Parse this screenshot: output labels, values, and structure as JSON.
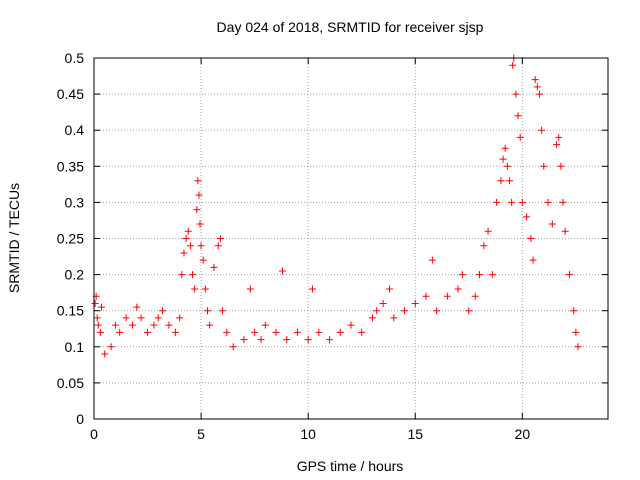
{
  "chart_data": {
    "type": "scatter",
    "title": "Day 024 of 2018, SRMTID for receiver sjsp",
    "xlabel": "GPS time / hours",
    "ylabel": "SRMTID / TECUs",
    "xlim": [
      0,
      24
    ],
    "ylim": [
      0,
      0.5
    ],
    "xticks": [
      "0",
      "5",
      "10",
      "15",
      "20"
    ],
    "yticks": [
      "0",
      "0.05",
      "0.1",
      "0.15",
      "0.2",
      "0.25",
      "0.3",
      "0.35",
      "0.4",
      "0.45",
      "0.5"
    ],
    "grid": true,
    "marker": "+",
    "color": "#ff0000",
    "x_range_data": [
      0,
      22.6
    ],
    "points": [
      [
        0.05,
        0.16
      ],
      [
        0.1,
        0.17
      ],
      [
        0.15,
        0.14
      ],
      [
        0.2,
        0.13
      ],
      [
        0.3,
        0.12
      ],
      [
        0.35,
        0.155
      ],
      [
        0.5,
        0.09
      ],
      [
        0.8,
        0.1
      ],
      [
        1.0,
        0.13
      ],
      [
        1.2,
        0.12
      ],
      [
        1.5,
        0.14
      ],
      [
        1.8,
        0.13
      ],
      [
        2.0,
        0.155
      ],
      [
        2.2,
        0.14
      ],
      [
        2.5,
        0.12
      ],
      [
        2.8,
        0.13
      ],
      [
        3.0,
        0.14
      ],
      [
        3.2,
        0.15
      ],
      [
        3.5,
        0.13
      ],
      [
        3.8,
        0.12
      ],
      [
        4.0,
        0.14
      ],
      [
        4.1,
        0.2
      ],
      [
        4.2,
        0.23
      ],
      [
        4.3,
        0.25
      ],
      [
        4.4,
        0.26
      ],
      [
        4.5,
        0.24
      ],
      [
        4.6,
        0.2
      ],
      [
        4.7,
        0.18
      ],
      [
        4.8,
        0.29
      ],
      [
        4.85,
        0.33
      ],
      [
        4.9,
        0.31
      ],
      [
        4.95,
        0.27
      ],
      [
        5.0,
        0.24
      ],
      [
        5.1,
        0.22
      ],
      [
        5.2,
        0.18
      ],
      [
        5.3,
        0.15
      ],
      [
        5.4,
        0.13
      ],
      [
        5.6,
        0.21
      ],
      [
        5.8,
        0.24
      ],
      [
        5.9,
        0.25
      ],
      [
        6.0,
        0.15
      ],
      [
        6.2,
        0.12
      ],
      [
        6.5,
        0.1
      ],
      [
        7.0,
        0.11
      ],
      [
        7.3,
        0.18
      ],
      [
        7.5,
        0.12
      ],
      [
        7.8,
        0.11
      ],
      [
        8.0,
        0.13
      ],
      [
        8.5,
        0.12
      ],
      [
        8.8,
        0.205
      ],
      [
        9.0,
        0.11
      ],
      [
        9.5,
        0.12
      ],
      [
        10.0,
        0.11
      ],
      [
        10.2,
        0.18
      ],
      [
        10.5,
        0.12
      ],
      [
        11.0,
        0.11
      ],
      [
        11.5,
        0.12
      ],
      [
        12.0,
        0.13
      ],
      [
        12.5,
        0.12
      ],
      [
        13.0,
        0.14
      ],
      [
        13.2,
        0.15
      ],
      [
        13.5,
        0.16
      ],
      [
        13.8,
        0.18
      ],
      [
        14.0,
        0.14
      ],
      [
        14.5,
        0.15
      ],
      [
        15.0,
        0.16
      ],
      [
        15.5,
        0.17
      ],
      [
        15.8,
        0.22
      ],
      [
        16.0,
        0.15
      ],
      [
        16.5,
        0.17
      ],
      [
        17.0,
        0.18
      ],
      [
        17.2,
        0.2
      ],
      [
        17.5,
        0.15
      ],
      [
        17.8,
        0.17
      ],
      [
        18.0,
        0.2
      ],
      [
        18.2,
        0.24
      ],
      [
        18.4,
        0.26
      ],
      [
        18.6,
        0.2
      ],
      [
        18.8,
        0.3
      ],
      [
        19.0,
        0.33
      ],
      [
        19.1,
        0.36
      ],
      [
        19.2,
        0.375
      ],
      [
        19.3,
        0.35
      ],
      [
        19.4,
        0.33
      ],
      [
        19.5,
        0.3
      ],
      [
        19.55,
        0.49
      ],
      [
        19.6,
        0.5
      ],
      [
        19.7,
        0.45
      ],
      [
        19.8,
        0.42
      ],
      [
        19.9,
        0.39
      ],
      [
        20.0,
        0.3
      ],
      [
        20.2,
        0.28
      ],
      [
        20.4,
        0.25
      ],
      [
        20.5,
        0.22
      ],
      [
        20.6,
        0.47
      ],
      [
        20.7,
        0.46
      ],
      [
        20.8,
        0.45
      ],
      [
        20.9,
        0.4
      ],
      [
        21.0,
        0.35
      ],
      [
        21.2,
        0.3
      ],
      [
        21.4,
        0.27
      ],
      [
        21.6,
        0.38
      ],
      [
        21.7,
        0.39
      ],
      [
        21.8,
        0.35
      ],
      [
        21.9,
        0.3
      ],
      [
        22.0,
        0.26
      ],
      [
        22.2,
        0.2
      ],
      [
        22.4,
        0.15
      ],
      [
        22.5,
        0.12
      ],
      [
        22.6,
        0.1
      ]
    ]
  }
}
